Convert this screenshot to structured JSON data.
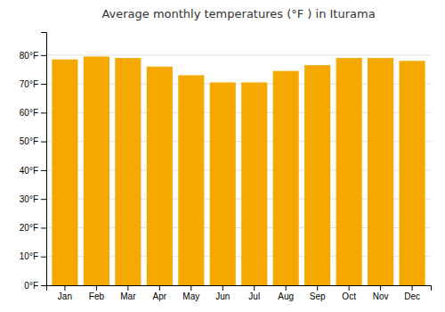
{
  "chart_data": {
    "type": "bar",
    "title": "Average monthly temperatures (°F ) in Iturama",
    "categories": [
      "Jan",
      "Feb",
      "Mar",
      "Apr",
      "May",
      "Jun",
      "Jul",
      "Aug",
      "Sep",
      "Oct",
      "Nov",
      "Dec"
    ],
    "values": [
      78.5,
      79.5,
      79.0,
      76.0,
      73.0,
      70.5,
      70.5,
      74.5,
      76.5,
      79.0,
      79.0,
      78.0
    ],
    "color": "#F5A800",
    "ylim": [
      0,
      88
    ],
    "yticks": [
      {
        "value": 0,
        "label": "0°F"
      },
      {
        "value": 10,
        "label": "10°F"
      },
      {
        "value": 20,
        "label": "20°F"
      },
      {
        "value": 30,
        "label": "30°F"
      },
      {
        "value": 40,
        "label": "40°F"
      },
      {
        "value": 50,
        "label": "50°F"
      },
      {
        "value": 60,
        "label": "60°F"
      },
      {
        "value": 70,
        "label": "70°F"
      },
      {
        "value": 80,
        "label": "80°F"
      }
    ],
    "grid": true
  }
}
